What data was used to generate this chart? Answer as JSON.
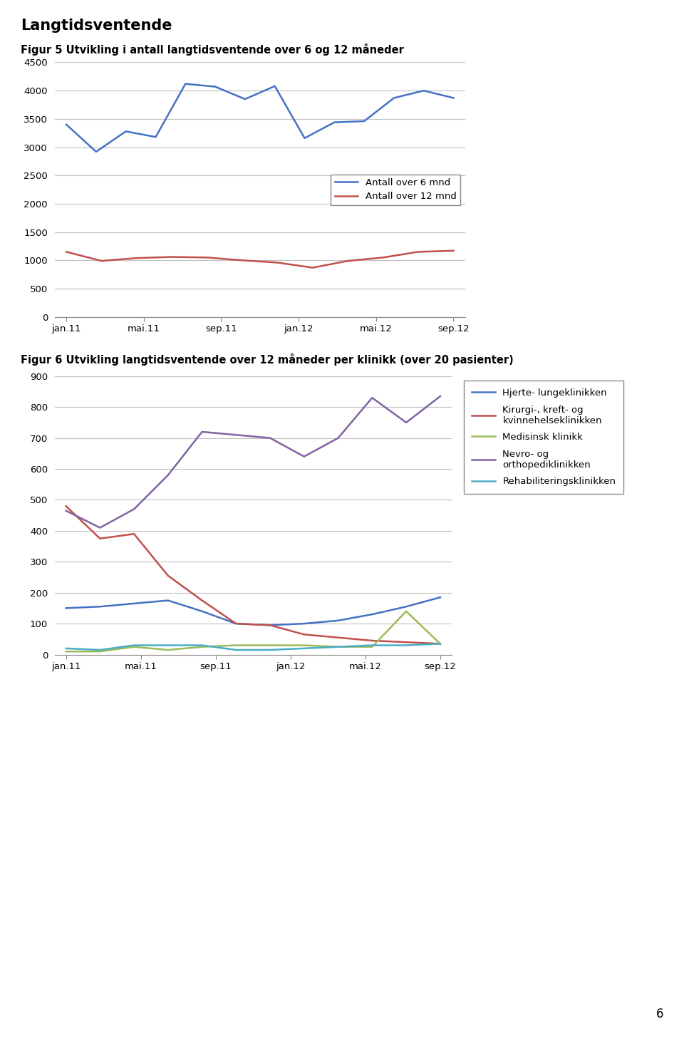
{
  "title_main": "Langtidsventende",
  "fig5_title": "Figur 5 Utvikling i antall langtidsventende over 6 og 12 måneder",
  "fig6_title": "Figur 6 Utvikling langtidsventende over 12 måneder per klinikk (over 20 pasienter)",
  "x_labels": [
    "jan.11",
    "mai.11",
    "sep.11",
    "jan.12",
    "mai.12",
    "sep.12"
  ],
  "x_positions": [
    0,
    1,
    2,
    3,
    4,
    5
  ],
  "fig5": {
    "over6": [
      3400,
      2920,
      3280,
      3180,
      4120,
      4070,
      3850,
      4080,
      3160,
      3440,
      3460,
      3870,
      4000,
      3870
    ],
    "over12": [
      1150,
      990,
      1040,
      1060,
      1050,
      1000,
      960,
      870,
      990,
      1050,
      1150,
      1170
    ],
    "color_6": "#4472C4",
    "color_12": "#C0504D",
    "legend_6": "Antall over 6 mnd",
    "legend_12": "Antall over 12 mnd",
    "ylim": [
      0,
      4500
    ],
    "yticks": [
      0,
      500,
      1000,
      1500,
      2000,
      2500,
      3000,
      3500,
      4000,
      4500
    ]
  },
  "fig6": {
    "hjerte": [
      150,
      155,
      165,
      175,
      140,
      100,
      95,
      100,
      110,
      130,
      155,
      185
    ],
    "kirurgi": [
      480,
      375,
      390,
      255,
      175,
      100,
      95,
      65,
      55,
      45,
      40,
      35
    ],
    "medisinsk": [
      10,
      10,
      25,
      15,
      25,
      30,
      30,
      30,
      25,
      25,
      140,
      35
    ],
    "nevro": [
      465,
      410,
      470,
      580,
      720,
      710,
      700,
      640,
      700,
      830,
      750,
      835
    ],
    "rehab": [
      20,
      15,
      30,
      30,
      30,
      15,
      15,
      20,
      25,
      30,
      30,
      35
    ],
    "color_hjerte": "#4472C4",
    "color_kirurgi": "#C0504D",
    "color_medisinsk": "#9BBB59",
    "color_nevro": "#8064A2",
    "color_rehab": "#4BACC6",
    "legend_hjerte": "Hjerte- lungeklinikken",
    "legend_kirurgi": "Kirurgi-, kreft- og\nkvinnehelseklinikken",
    "legend_medisinsk": "Medisinsk klinikk",
    "legend_nevro": "Nevro- og\northopediklinikken",
    "legend_rehab": "Rehabiliteringsklinikken",
    "ylim": [
      0,
      900
    ],
    "yticks": [
      0,
      100,
      200,
      300,
      400,
      500,
      600,
      700,
      800,
      900
    ]
  },
  "page_number": "6"
}
